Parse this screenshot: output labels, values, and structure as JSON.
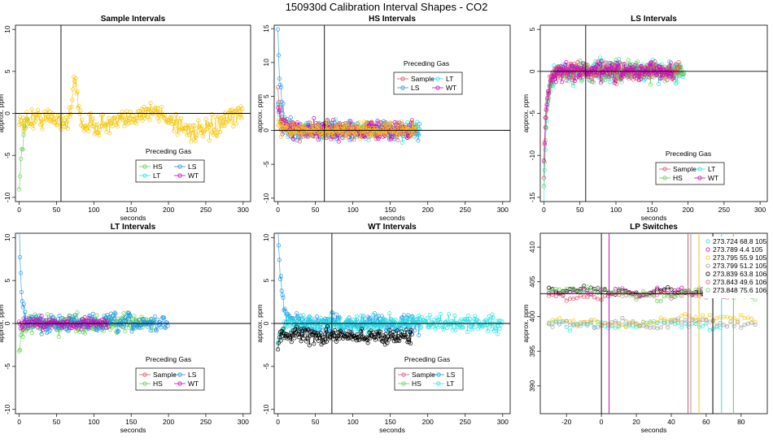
{
  "figure_title": "150930d   Calibration Interval Shapes - CO2",
  "colors": {
    "Sample": "#DF536B",
    "HS": "#61D04F",
    "LS": "#2297E6",
    "LT": "#28E2E5",
    "WT": "#CD0BBC",
    "yellow": "#F5C710",
    "gray": "#9E9E9E",
    "black": "#000000"
  },
  "chart_data": [
    {
      "id": "sample",
      "type": "line",
      "title": "Sample Intervals",
      "xlabel": "seconds",
      "ylabel": "approx. ppm",
      "xlim": [
        -5,
        310
      ],
      "ylim": [
        -10.5,
        10.5
      ],
      "xticks": [
        0,
        50,
        100,
        150,
        200,
        250,
        300
      ],
      "yticks": [
        -10,
        -5,
        0,
        5,
        10
      ],
      "hline": 0,
      "vline": 56,
      "legend": {
        "title": "Preceding Gas",
        "entries": [
          "HS",
          "LS",
          "LT",
          "WT"
        ],
        "columns": 2,
        "position": "bottom-center"
      },
      "series": [
        {
          "name": "HS",
          "color": "HS",
          "model": "transient",
          "start": -9,
          "tau": 5,
          "n": 10,
          "dt": 1.2,
          "noise": 0.8
        },
        {
          "name": "Sample",
          "color": "yellow",
          "model": "bump",
          "n": 300,
          "dt": 1,
          "noise": 1.2,
          "bumpAt": 75,
          "bumpH": 5,
          "bumpW": 5
        }
      ]
    },
    {
      "id": "hs",
      "type": "line",
      "title": "HS Intervals",
      "xlabel": "seconds",
      "ylabel": "approx. ppm",
      "xlim": [
        -5,
        310
      ],
      "ylim": [
        -10.5,
        15.5
      ],
      "xticks": [
        0,
        50,
        100,
        150,
        200,
        250,
        300
      ],
      "yticks": [
        -10,
        -5,
        0,
        5,
        10,
        15
      ],
      "hline": 0,
      "vline": 62,
      "legend": {
        "title": "Preceding Gas",
        "entries": [
          "Sample",
          "LT",
          "LS",
          "WT"
        ],
        "columns": 2,
        "position": "top-center"
      },
      "series": [
        {
          "name": "LS",
          "color": "LS",
          "model": "transient",
          "start": 15,
          "tau": 4,
          "n": 190,
          "dt": 1,
          "noise": 1.2
        },
        {
          "name": "LT",
          "color": "LT",
          "model": "transient",
          "start": 4,
          "tau": 4,
          "n": 190,
          "dt": 1,
          "noise": 1.2
        },
        {
          "name": "Sample",
          "color": "Sample",
          "model": "transient",
          "start": 6,
          "tau": 4,
          "n": 185,
          "dt": 1,
          "noise": 1.2
        },
        {
          "name": "WT",
          "color": "WT",
          "model": "transient",
          "start": 3,
          "tau": 4,
          "n": 180,
          "dt": 1,
          "noise": 1.3
        },
        {
          "name": "Y",
          "color": "yellow",
          "model": "transient",
          "start": 1,
          "tau": 4,
          "n": 185,
          "dt": 1,
          "noise": 1.0
        }
      ]
    },
    {
      "id": "ls",
      "type": "line",
      "title": "LS Intervals",
      "xlabel": "seconds",
      "ylabel": "approx. ppm",
      "xlim": [
        -5,
        310
      ],
      "ylim": [
        -15.5,
        5.5
      ],
      "xticks": [
        0,
        50,
        100,
        150,
        200,
        250,
        300
      ],
      "yticks": [
        -15,
        -10,
        -5,
        0,
        5
      ],
      "hline": 0,
      "vline": 58,
      "legend": {
        "title": "Preceding Gas",
        "entries": [
          "Sample",
          "LT",
          "HS",
          "WT"
        ],
        "columns": 2,
        "position": "bottom-right"
      },
      "series": [
        {
          "name": "LT",
          "color": "LT",
          "model": "transient",
          "start": -15,
          "tau": 4,
          "n": 195,
          "dt": 1,
          "noise": 1.1
        },
        {
          "name": "HS",
          "color": "HS",
          "model": "transient",
          "start": -14,
          "tau": 4,
          "n": 195,
          "dt": 1,
          "noise": 1.1
        },
        {
          "name": "Sample",
          "color": "Sample",
          "model": "transient",
          "start": -12,
          "tau": 4,
          "n": 190,
          "dt": 1,
          "noise": 1.0
        },
        {
          "name": "WT",
          "color": "WT",
          "model": "transient",
          "start": -10,
          "tau": 4,
          "n": 180,
          "dt": 1,
          "noise": 1.0
        }
      ]
    },
    {
      "id": "lt",
      "type": "line",
      "title": "LT Intervals",
      "xlabel": "seconds",
      "ylabel": "approx. ppm",
      "xlim": [
        -5,
        310
      ],
      "ylim": [
        -10.5,
        10.5
      ],
      "xticks": [
        0,
        50,
        100,
        150,
        200,
        250,
        300
      ],
      "yticks": [
        -10,
        -5,
        0,
        5,
        10
      ],
      "hline": 0,
      "vline": null,
      "legend": {
        "title": "Preceding Gas",
        "entries": [
          "Sample",
          "LS",
          "HS",
          "WT"
        ],
        "columns": 2,
        "position": "bottom-center"
      },
      "series": [
        {
          "name": "HS",
          "color": "HS",
          "model": "transient",
          "start": -3,
          "tau": 4,
          "n": 180,
          "dt": 1,
          "noise": 1.0
        },
        {
          "name": "LS",
          "color": "LS",
          "model": "transient",
          "start": 11,
          "tau": 3,
          "n": 200,
          "dt": 1,
          "noise": 1.0
        },
        {
          "name": "WT",
          "color": "WT",
          "model": "transient",
          "start": 0,
          "tau": 4,
          "n": 120,
          "dt": 1,
          "noise": 0.6
        }
      ]
    },
    {
      "id": "wt",
      "type": "line",
      "title": "WT Intervals",
      "xlabel": "seconds",
      "ylabel": "approx. ppm",
      "xlim": [
        -5,
        310
      ],
      "ylim": [
        -10.5,
        10.5
      ],
      "xticks": [
        0,
        50,
        100,
        150,
        200,
        250,
        300
      ],
      "yticks": [
        -10,
        -5,
        0,
        5,
        10
      ],
      "hline": 0,
      "vline": 72,
      "legend": {
        "title": "Preceding Gas",
        "entries": [
          "Sample",
          "LS",
          "HS",
          "LT"
        ],
        "columns": 2,
        "position": "bottom-center"
      },
      "series": [
        {
          "name": "LS",
          "color": "LS",
          "model": "transient",
          "start": 11,
          "tau": 5,
          "n": 190,
          "dt": 1,
          "noise": 1.0
        },
        {
          "name": "LT",
          "color": "LT",
          "model": "transient",
          "start": -3,
          "tau": 4,
          "n": 300,
          "dt": 1,
          "noise": 0.9
        },
        {
          "name": "K",
          "color": "black",
          "model": "transient",
          "start": -2,
          "tau": 5,
          "n": 180,
          "dt": 1,
          "noise": 0.8,
          "offset": -1.5
        }
      ]
    },
    {
      "id": "lp",
      "type": "scatter",
      "title": "LP Switches",
      "xlabel": "seconds",
      "ylabel": "approx. ppm",
      "xlim": [
        -35,
        95
      ],
      "ylim": [
        386,
        412
      ],
      "xticks": [
        -20,
        0,
        20,
        40,
        60,
        80
      ],
      "yticks": [
        390,
        395,
        400,
        405,
        410
      ],
      "hline": 403.3,
      "vline": 0,
      "legend": {
        "position": "top-right",
        "entries": [
          {
            "label": "273.724 68.8 105",
            "color": "LT"
          },
          {
            "label": "273.789 4.4 105",
            "color": "WT"
          },
          {
            "label": "273.795 55.9 105",
            "color": "yellow"
          },
          {
            "label": "273.799 51.2 105",
            "color": "gray"
          },
          {
            "label": "273.839 63.8 106",
            "color": "black"
          },
          {
            "label": "273.843 49.6 106",
            "color": "Sample"
          },
          {
            "label": "273.848 75.6 106",
            "color": "HS"
          }
        ]
      },
      "switch_lines": [
        {
          "x": 68.8,
          "color": "LT"
        },
        {
          "x": 4.4,
          "color": "WT"
        },
        {
          "x": 55.9,
          "color": "yellow"
        },
        {
          "x": 51.2,
          "color": "gray"
        },
        {
          "x": 63.8,
          "color": "black"
        },
        {
          "x": 49.6,
          "color": "Sample"
        },
        {
          "x": 75.6,
          "color": "HS"
        }
      ],
      "series": [
        {
          "name": "LT",
          "color": "LT",
          "level": 399,
          "x0": -30,
          "x1": 68,
          "noise": 0.9
        },
        {
          "name": "WT",
          "color": "WT",
          "level": 403.5,
          "x0": -30,
          "x1": 88,
          "noise": 0.7
        },
        {
          "name": "yellow",
          "color": "yellow",
          "level": 399.2,
          "x0": -30,
          "x1": 88,
          "noise": 0.8
        },
        {
          "name": "gray",
          "color": "gray",
          "level": 398.8,
          "x0": -30,
          "x1": 88,
          "noise": 0.8
        },
        {
          "name": "black",
          "color": "black",
          "level": 403.8,
          "x0": -30,
          "x1": 88,
          "noise": 0.7
        },
        {
          "name": "Sample",
          "color": "Sample",
          "level": 403.2,
          "x0": -30,
          "x1": 88,
          "noise": 0.7
        },
        {
          "name": "HS",
          "color": "HS",
          "level": 403.4,
          "x0": -30,
          "x1": 88,
          "noise": 0.7
        }
      ]
    }
  ]
}
